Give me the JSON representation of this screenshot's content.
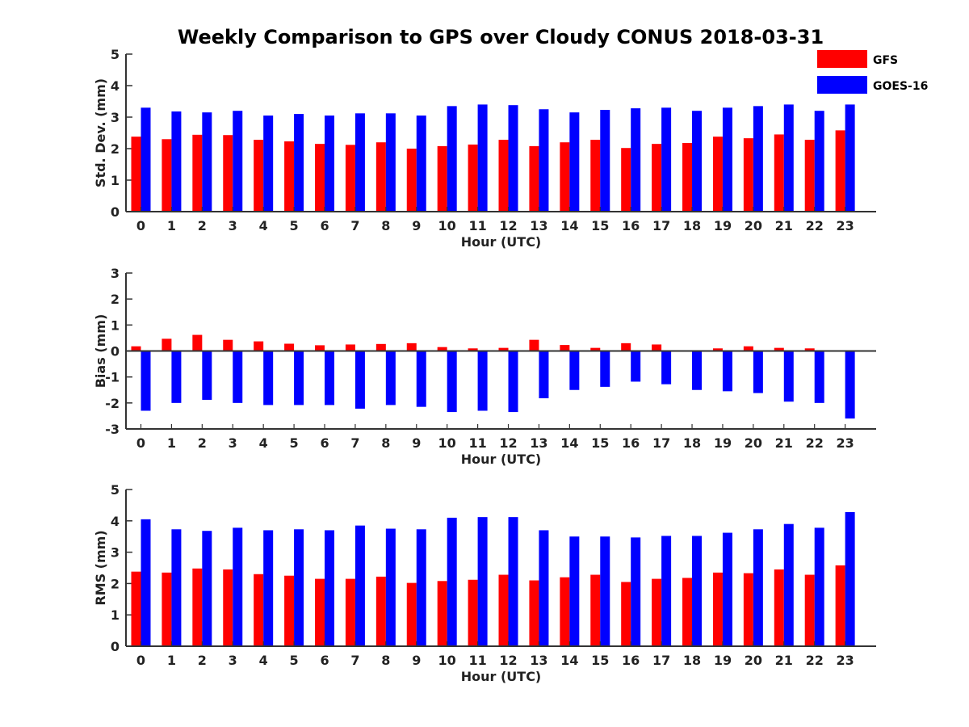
{
  "figure": {
    "title": "Weekly Comparison to GPS over Cloudy CONUS 2018-03-31"
  },
  "legend": {
    "placement": "top-right",
    "entries": [
      {
        "name": "GFS",
        "color": "#ff0000"
      },
      {
        "name": "GOES-16",
        "color": "#0000ff"
      }
    ]
  },
  "chart_data": [
    {
      "type": "bar",
      "xlabel": "Hour (UTC)",
      "ylabel": "Std. Dev. (mm)",
      "ylim": [
        0,
        5
      ],
      "yticks": [
        0,
        1,
        2,
        3,
        4,
        5
      ],
      "categories": [
        "0",
        "1",
        "2",
        "3",
        "4",
        "5",
        "6",
        "7",
        "8",
        "9",
        "10",
        "11",
        "12",
        "13",
        "14",
        "15",
        "16",
        "17",
        "18",
        "19",
        "20",
        "21",
        "22",
        "23"
      ],
      "series": [
        {
          "name": "GFS",
          "color": "#ff0000",
          "values": [
            2.38,
            2.3,
            2.44,
            2.43,
            2.28,
            2.23,
            2.15,
            2.12,
            2.2,
            2.0,
            2.08,
            2.13,
            2.28,
            2.08,
            2.2,
            2.28,
            2.02,
            2.15,
            2.18,
            2.38,
            2.33,
            2.45,
            2.28,
            2.58
          ]
        },
        {
          "name": "GOES-16",
          "color": "#0000ff",
          "values": [
            3.3,
            3.18,
            3.15,
            3.2,
            3.05,
            3.1,
            3.05,
            3.12,
            3.12,
            3.05,
            3.35,
            3.4,
            3.38,
            3.25,
            3.15,
            3.23,
            3.28,
            3.3,
            3.2,
            3.3,
            3.35,
            3.4,
            3.2,
            3.4
          ]
        }
      ]
    },
    {
      "type": "bar",
      "xlabel": "Hour (UTC)",
      "ylabel": "Bias (mm)",
      "ylim": [
        -3,
        3
      ],
      "yticks": [
        -3,
        -2,
        -1,
        0,
        1,
        2,
        3
      ],
      "zero_line": true,
      "categories": [
        "0",
        "1",
        "2",
        "3",
        "4",
        "5",
        "6",
        "7",
        "8",
        "9",
        "10",
        "11",
        "12",
        "13",
        "14",
        "15",
        "16",
        "17",
        "18",
        "19",
        "20",
        "21",
        "22",
        "23"
      ],
      "series": [
        {
          "name": "GFS",
          "color": "#ff0000",
          "values": [
            0.18,
            0.47,
            0.62,
            0.43,
            0.37,
            0.28,
            0.22,
            0.25,
            0.27,
            0.3,
            0.15,
            0.1,
            0.12,
            0.43,
            0.23,
            0.12,
            0.3,
            0.25,
            0.03,
            0.1,
            0.18,
            0.12,
            0.1,
            0.0
          ]
        },
        {
          "name": "GOES-16",
          "color": "#0000ff",
          "values": [
            -2.3,
            -2.0,
            -1.88,
            -2.0,
            -2.08,
            -2.08,
            -2.08,
            -2.22,
            -2.08,
            -2.15,
            -2.35,
            -2.3,
            -2.35,
            -1.82,
            -1.5,
            -1.38,
            -1.18,
            -1.28,
            -1.5,
            -1.55,
            -1.62,
            -1.95,
            -2.0,
            -2.6
          ]
        }
      ]
    },
    {
      "type": "bar",
      "xlabel": "Hour (UTC)",
      "ylabel": "RMS (mm)",
      "ylim": [
        0,
        5
      ],
      "yticks": [
        0,
        1,
        2,
        3,
        4,
        5
      ],
      "categories": [
        "0",
        "1",
        "2",
        "3",
        "4",
        "5",
        "6",
        "7",
        "8",
        "9",
        "10",
        "11",
        "12",
        "13",
        "14",
        "15",
        "16",
        "17",
        "18",
        "19",
        "20",
        "21",
        "22",
        "23"
      ],
      "series": [
        {
          "name": "GFS",
          "color": "#ff0000",
          "values": [
            2.38,
            2.35,
            2.48,
            2.45,
            2.3,
            2.25,
            2.15,
            2.15,
            2.22,
            2.02,
            2.08,
            2.12,
            2.28,
            2.1,
            2.2,
            2.28,
            2.05,
            2.15,
            2.18,
            2.35,
            2.33,
            2.45,
            2.28,
            2.58
          ]
        },
        {
          "name": "GOES-16",
          "color": "#0000ff",
          "values": [
            4.05,
            3.73,
            3.68,
            3.78,
            3.7,
            3.73,
            3.7,
            3.85,
            3.75,
            3.73,
            4.1,
            4.12,
            4.12,
            3.7,
            3.5,
            3.5,
            3.47,
            3.52,
            3.52,
            3.62,
            3.73,
            3.9,
            3.78,
            4.28
          ]
        }
      ]
    }
  ]
}
